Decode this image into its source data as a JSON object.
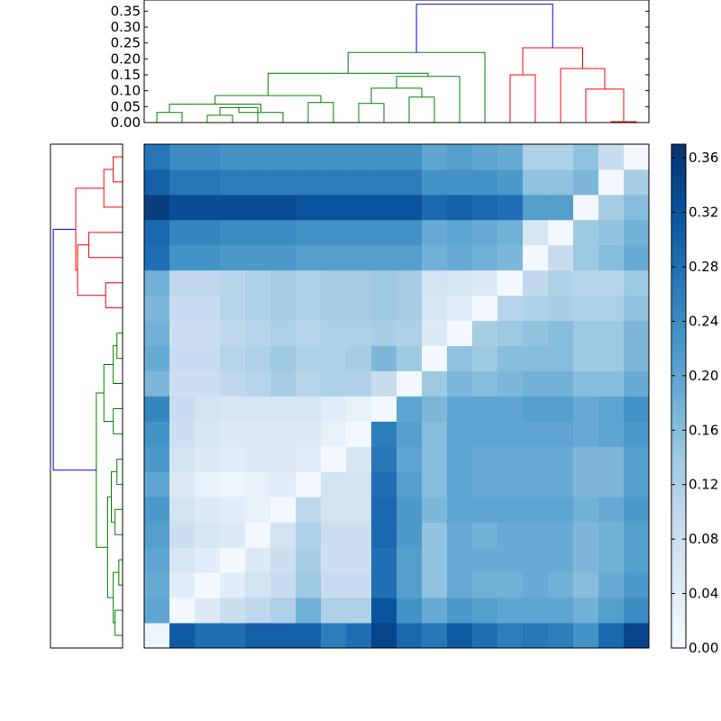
{
  "chart_data": [
    {
      "type": "heatmap",
      "title": "",
      "xlabel": "",
      "ylabel": "",
      "rows": 20,
      "cols": 20,
      "values": [
        [
          0.02,
          0.31,
          0.28,
          0.28,
          0.3,
          0.3,
          0.3,
          0.26,
          0.28,
          0.34,
          0.29,
          0.27,
          0.31,
          0.28,
          0.26,
          0.27,
          0.26,
          0.23,
          0.29,
          0.34
        ],
        [
          0.2,
          0.01,
          0.05,
          0.08,
          0.1,
          0.12,
          0.18,
          0.12,
          0.12,
          0.32,
          0.23,
          0.19,
          0.22,
          0.21,
          0.2,
          0.2,
          0.2,
          0.18,
          0.21,
          0.24
        ],
        [
          0.19,
          0.04,
          0.01,
          0.04,
          0.07,
          0.09,
          0.14,
          0.09,
          0.09,
          0.28,
          0.21,
          0.15,
          0.19,
          0.18,
          0.18,
          0.19,
          0.18,
          0.16,
          0.19,
          0.22
        ],
        [
          0.2,
          0.06,
          0.04,
          0.01,
          0.05,
          0.08,
          0.13,
          0.08,
          0.08,
          0.28,
          0.21,
          0.15,
          0.19,
          0.19,
          0.19,
          0.19,
          0.19,
          0.17,
          0.18,
          0.21
        ],
        [
          0.21,
          0.08,
          0.06,
          0.05,
          0.01,
          0.07,
          0.12,
          0.08,
          0.08,
          0.29,
          0.22,
          0.15,
          0.19,
          0.18,
          0.19,
          0.19,
          0.19,
          0.17,
          0.18,
          0.21
        ],
        [
          0.22,
          0.07,
          0.05,
          0.04,
          0.03,
          0.01,
          0.1,
          0.07,
          0.07,
          0.29,
          0.22,
          0.17,
          0.2,
          0.2,
          0.2,
          0.2,
          0.2,
          0.18,
          0.19,
          0.22
        ],
        [
          0.2,
          0.05,
          0.03,
          0.02,
          0.03,
          0.04,
          0.01,
          0.07,
          0.07,
          0.28,
          0.21,
          0.16,
          0.2,
          0.19,
          0.19,
          0.19,
          0.19,
          0.17,
          0.17,
          0.21
        ],
        [
          0.22,
          0.07,
          0.05,
          0.04,
          0.05,
          0.05,
          0.04,
          0.01,
          0.06,
          0.27,
          0.2,
          0.16,
          0.2,
          0.19,
          0.19,
          0.19,
          0.19,
          0.17,
          0.17,
          0.21
        ],
        [
          0.23,
          0.08,
          0.06,
          0.05,
          0.05,
          0.05,
          0.05,
          0.03,
          0.01,
          0.26,
          0.21,
          0.16,
          0.2,
          0.2,
          0.2,
          0.2,
          0.2,
          0.19,
          0.2,
          0.22
        ],
        [
          0.25,
          0.09,
          0.07,
          0.06,
          0.06,
          0.06,
          0.06,
          0.04,
          0.03,
          0.01,
          0.2,
          0.17,
          0.2,
          0.2,
          0.2,
          0.21,
          0.21,
          0.19,
          0.2,
          0.23
        ],
        [
          0.17,
          0.08,
          0.08,
          0.1,
          0.11,
          0.13,
          0.11,
          0.12,
          0.12,
          0.09,
          0.01,
          0.14,
          0.17,
          0.16,
          0.17,
          0.18,
          0.18,
          0.16,
          0.16,
          0.19
        ],
        [
          0.19,
          0.09,
          0.09,
          0.11,
          0.12,
          0.14,
          0.12,
          0.12,
          0.13,
          0.17,
          0.14,
          0.01,
          0.15,
          0.14,
          0.16,
          0.16,
          0.16,
          0.14,
          0.14,
          0.17
        ],
        [
          0.18,
          0.08,
          0.08,
          0.1,
          0.11,
          0.12,
          0.11,
          0.12,
          0.12,
          0.13,
          0.12,
          0.05,
          0.01,
          0.13,
          0.14,
          0.15,
          0.16,
          0.14,
          0.14,
          0.17
        ],
        [
          0.17,
          0.09,
          0.09,
          0.11,
          0.12,
          0.13,
          0.12,
          0.13,
          0.13,
          0.14,
          0.13,
          0.06,
          0.04,
          0.01,
          0.11,
          0.12,
          0.13,
          0.12,
          0.12,
          0.15
        ],
        [
          0.18,
          0.1,
          0.1,
          0.11,
          0.12,
          0.13,
          0.12,
          0.13,
          0.13,
          0.14,
          0.13,
          0.07,
          0.06,
          0.05,
          0.01,
          0.1,
          0.12,
          0.11,
          0.11,
          0.14
        ],
        [
          0.28,
          0.23,
          0.23,
          0.22,
          0.22,
          0.22,
          0.21,
          0.21,
          0.21,
          0.21,
          0.21,
          0.18,
          0.19,
          0.18,
          0.17,
          0.01,
          0.09,
          0.14,
          0.16,
          0.19
        ],
        [
          0.29,
          0.25,
          0.25,
          0.24,
          0.24,
          0.24,
          0.23,
          0.23,
          0.23,
          0.23,
          0.23,
          0.19,
          0.2,
          0.19,
          0.18,
          0.06,
          0.01,
          0.14,
          0.15,
          0.18
        ],
        [
          0.35,
          0.33,
          0.33,
          0.33,
          0.33,
          0.33,
          0.32,
          0.32,
          0.32,
          0.32,
          0.32,
          0.29,
          0.3,
          0.29,
          0.28,
          0.21,
          0.21,
          0.01,
          0.13,
          0.16
        ],
        [
          0.3,
          0.27,
          0.27,
          0.26,
          0.26,
          0.26,
          0.26,
          0.26,
          0.26,
          0.26,
          0.26,
          0.23,
          0.23,
          0.23,
          0.22,
          0.15,
          0.15,
          0.17,
          0.01,
          0.13
        ],
        [
          0.27,
          0.24,
          0.24,
          0.23,
          0.23,
          0.23,
          0.23,
          0.23,
          0.23,
          0.23,
          0.23,
          0.2,
          0.21,
          0.2,
          0.19,
          0.12,
          0.12,
          0.15,
          0.09,
          0.01
        ]
      ],
      "colormap": [
        "#f7fbff",
        "#deebf7",
        "#c6dbef",
        "#9ecae1",
        "#6baed6",
        "#4292c6",
        "#2171b5",
        "#08519c",
        "#08306b"
      ],
      "colorbar": {
        "vmin": 0.0,
        "vmax": 0.37,
        "ticks": [
          "0.00",
          "0.04",
          "0.08",
          "0.12",
          "0.16",
          "0.20",
          "0.24",
          "0.28",
          "0.32",
          "0.36"
        ],
        "position": "right"
      }
    },
    {
      "type": "dendrogram",
      "orientation": "top",
      "ylim": [
        0.0,
        0.385
      ],
      "ticks": [
        "0.00",
        "0.05",
        "0.10",
        "0.15",
        "0.20",
        "0.25",
        "0.30",
        "0.35"
      ],
      "colors": {
        "cluster_a": "#008000",
        "cluster_b": "#ff0000",
        "root": "#0000ff"
      },
      "leaves": 20,
      "merges": [
        {
          "left": 0,
          "right": 1,
          "height": 0.032,
          "color": "cluster_a"
        },
        {
          "left": 2,
          "right": 3,
          "height": 0.023,
          "color": "cluster_a"
        },
        {
          "left": "m1",
          "right": 4,
          "height": 0.047,
          "color": "cluster_a"
        },
        {
          "left": 5,
          "right": "m2",
          "height": 0.032,
          "color": "cluster_a"
        },
        {
          "left": "m0",
          "right": "m3",
          "height": 0.058,
          "color": "cluster_a"
        },
        {
          "left": 6,
          "right": 7,
          "height": 0.063,
          "color": "cluster_a"
        },
        {
          "left": "m4",
          "right": "m5",
          "height": 0.085,
          "color": "cluster_a"
        },
        {
          "left": 8,
          "right": 9,
          "height": 0.06,
          "color": "cluster_a"
        },
        {
          "left": 10,
          "right": 11,
          "height": 0.08,
          "color": "cluster_a"
        },
        {
          "left": "m7",
          "right": "m8",
          "height": 0.108,
          "color": "cluster_a"
        },
        {
          "left": 12,
          "right": "m9",
          "height": 0.145,
          "color": "cluster_a"
        },
        {
          "left": "m6",
          "right": "m10",
          "height": 0.155,
          "color": "cluster_a"
        },
        {
          "left": 13,
          "right": "m11",
          "height": 0.22,
          "color": "cluster_a"
        },
        {
          "left": 14,
          "right": 15,
          "height": 0.15,
          "color": "cluster_b"
        },
        {
          "left": 18,
          "right": 19,
          "height": 0.003,
          "color": "cluster_b"
        },
        {
          "left": 17,
          "right": "m14",
          "height": 0.105,
          "color": "cluster_b"
        },
        {
          "left": 16,
          "right": "m15",
          "height": 0.17,
          "color": "cluster_b"
        },
        {
          "left": "m13",
          "right": "m16",
          "height": 0.235,
          "color": "cluster_b"
        },
        {
          "left": "m12",
          "right": "m17",
          "height": 0.372,
          "color": "root"
        }
      ]
    },
    {
      "type": "dendrogram",
      "orientation": "left",
      "xlim": [
        0.0,
        0.385
      ],
      "colors": {
        "cluster_a": "#008000",
        "cluster_b": "#ff0000",
        "root": "#0000ff"
      },
      "leaves": 20,
      "merges": [
        {
          "left": 0,
          "right": 1,
          "height": 0.05,
          "color": "cluster_b"
        },
        {
          "left": "m0",
          "right": 2,
          "height": 0.1,
          "color": "cluster_b"
        },
        {
          "left": 3,
          "right": 4,
          "height": 0.18,
          "color": "cluster_b"
        },
        {
          "left": 5,
          "right": 6,
          "height": 0.09,
          "color": "cluster_b"
        },
        {
          "left": "m2",
          "right": "m3",
          "height": 0.24,
          "color": "cluster_b"
        },
        {
          "left": "m1",
          "right": "m4",
          "height": 0.25,
          "color": "cluster_b"
        },
        {
          "left": 7,
          "right": 8,
          "height": 0.03,
          "color": "cluster_a"
        },
        {
          "left": "m6",
          "right": 9,
          "height": 0.05,
          "color": "cluster_a"
        },
        {
          "left": 10,
          "right": 11,
          "height": 0.05,
          "color": "cluster_a"
        },
        {
          "left": "m7",
          "right": "m8",
          "height": 0.1,
          "color": "cluster_a"
        },
        {
          "left": 12,
          "right": 13,
          "height": 0.03,
          "color": "cluster_a"
        },
        {
          "left": 14,
          "right": 15,
          "height": 0.04,
          "color": "cluster_a"
        },
        {
          "left": "m10",
          "right": "m11",
          "height": 0.06,
          "color": "cluster_a"
        },
        {
          "left": 16,
          "right": 17,
          "height": 0.02,
          "color": "cluster_a"
        },
        {
          "left": 18,
          "right": 19,
          "height": 0.04,
          "color": "cluster_a"
        },
        {
          "left": "m13",
          "right": "m14",
          "height": 0.05,
          "color": "cluster_a"
        },
        {
          "left": "m12",
          "right": "m15",
          "height": 0.08,
          "color": "cluster_a"
        },
        {
          "left": "m9",
          "right": "m16",
          "height": 0.14,
          "color": "cluster_a"
        },
        {
          "left": "m5",
          "right": "m17",
          "height": 0.37,
          "color": "root"
        }
      ]
    }
  ]
}
